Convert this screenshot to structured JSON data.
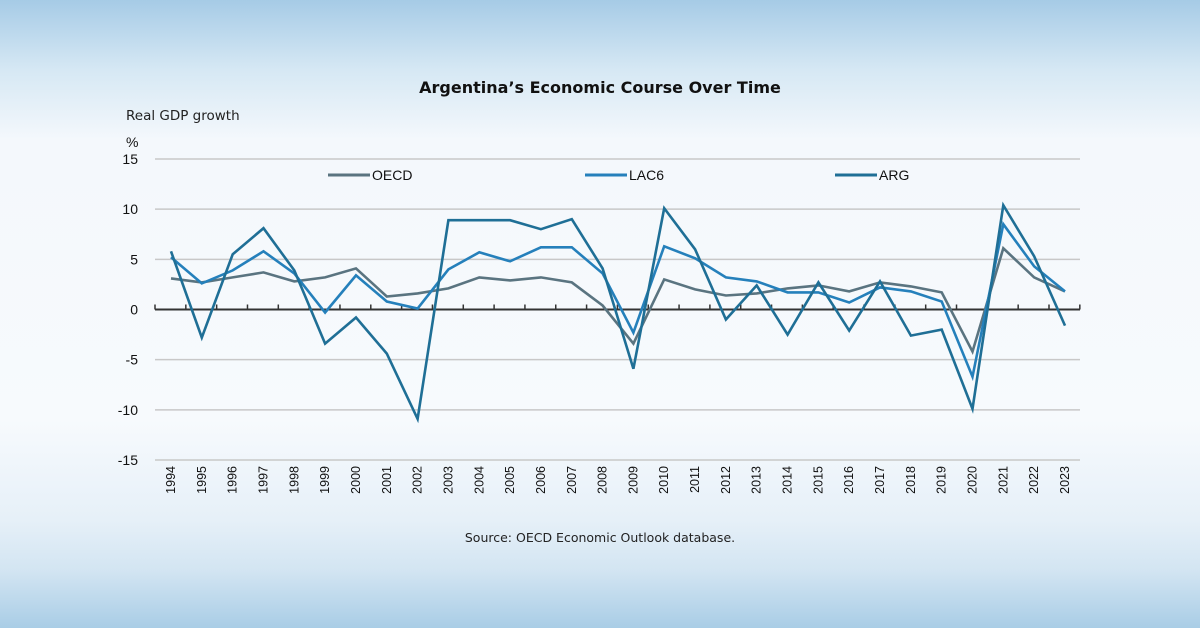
{
  "chart_data": {
    "type": "line",
    "title": "Argentina’s Economic Course Over Time",
    "subtitle": "Real GDP growth",
    "ylabel": "%",
    "xlabel": "",
    "ylim": [
      -15,
      15
    ],
    "yticks": [
      15,
      10,
      5,
      0,
      -5,
      -10,
      -15
    ],
    "grid": true,
    "legend_position": "top",
    "x": [
      "1994",
      "1995",
      "1996",
      "1997",
      "1998",
      "1999",
      "2000",
      "2001",
      "2002",
      "2003",
      "2004",
      "2005",
      "2006",
      "2007",
      "2008",
      "2009",
      "2010",
      "2011",
      "2012",
      "2013",
      "2014",
      "2015",
      "2016",
      "2017",
      "2018",
      "2019",
      "2020",
      "2021",
      "2022",
      "2023"
    ],
    "series": [
      {
        "name": "OECD",
        "color": "#5a7480",
        "values": [
          3.1,
          2.7,
          3.2,
          3.7,
          2.8,
          3.2,
          4.1,
          1.3,
          1.6,
          2.1,
          3.2,
          2.9,
          3.2,
          2.7,
          0.4,
          -3.4,
          3.0,
          2.0,
          1.4,
          1.6,
          2.1,
          2.4,
          1.8,
          2.7,
          2.3,
          1.7,
          -4.2,
          6.1,
          3.2,
          1.8
        ]
      },
      {
        "name": "LAC6",
        "color": "#2580bb",
        "values": [
          5.2,
          2.6,
          3.9,
          5.8,
          3.6,
          -0.3,
          3.4,
          0.8,
          0.1,
          4.0,
          5.7,
          4.8,
          6.2,
          6.2,
          3.6,
          -2.3,
          6.3,
          5.1,
          3.2,
          2.8,
          1.7,
          1.7,
          0.7,
          2.2,
          1.8,
          0.8,
          -6.7,
          8.5,
          4.3,
          1.8
        ]
      },
      {
        "name": "ARG",
        "color": "#1f6f96",
        "values": [
          5.8,
          -2.8,
          5.5,
          8.1,
          3.9,
          -3.4,
          -0.8,
          -4.4,
          -10.9,
          8.9,
          8.9,
          8.9,
          8.0,
          9.0,
          4.1,
          -5.9,
          10.1,
          6.0,
          -1.0,
          2.4,
          -2.5,
          2.7,
          -2.1,
          2.8,
          -2.6,
          -2.0,
          -9.9,
          10.4,
          5.3,
          -1.6
        ]
      }
    ],
    "source": "Source: OECD Economic Outlook database."
  }
}
